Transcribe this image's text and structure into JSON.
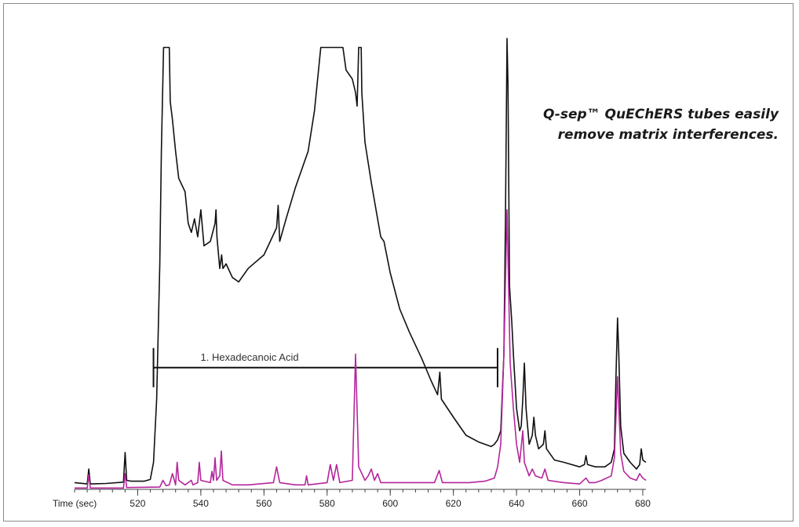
{
  "callout": {
    "line1": "Q-sep™ QuEChERS tubes easily",
    "line2": "remove matrix interferences."
  },
  "chart_data": {
    "type": "line",
    "title": "",
    "xlabel": "Time (sec)",
    "ylabel": "",
    "xlim": [
      500,
      681
    ],
    "ylim": [
      0,
      100
    ],
    "x_ticks": [
      520,
      540,
      560,
      580,
      600,
      620,
      640,
      660,
      680
    ],
    "grid": false,
    "colors": {
      "series_black": "#111111",
      "series_magenta": "#b5259c",
      "annotation": "#111111"
    },
    "annotation": {
      "label": "1. Hexadecanoic Acid",
      "x_start": 525,
      "x_end": 634,
      "y": 27
    },
    "series": [
      {
        "color": "#111111",
        "points": [
          [
            500,
            1.5
          ],
          [
            504,
            1.2
          ],
          [
            504.5,
            4.5
          ],
          [
            505,
            1.2
          ],
          [
            510,
            1.3
          ],
          [
            515.5,
            1.6
          ],
          [
            516,
            8.2
          ],
          [
            516.5,
            2.0
          ],
          [
            518,
            1.8
          ],
          [
            522,
            1.8
          ],
          [
            524,
            2.2
          ],
          [
            525,
            6
          ],
          [
            526,
            20
          ],
          [
            527,
            50
          ],
          [
            527.5,
            75
          ],
          [
            528.2,
            98
          ],
          [
            530,
            98
          ],
          [
            530.3,
            86
          ],
          [
            531,
            82
          ],
          [
            532,
            75
          ],
          [
            533,
            69
          ],
          [
            535,
            66
          ],
          [
            536,
            59
          ],
          [
            537,
            57
          ],
          [
            538,
            60
          ],
          [
            539,
            56
          ],
          [
            540,
            62
          ],
          [
            541,
            54
          ],
          [
            543,
            55
          ],
          [
            544.5,
            59
          ],
          [
            544.8,
            62
          ],
          [
            545.1,
            56
          ],
          [
            546,
            49
          ],
          [
            546.6,
            52
          ],
          [
            547,
            49
          ],
          [
            548,
            50
          ],
          [
            550,
            47
          ],
          [
            552,
            46
          ],
          [
            555,
            49
          ],
          [
            560,
            52
          ],
          [
            564,
            58
          ],
          [
            564.5,
            63
          ],
          [
            565,
            55
          ],
          [
            567,
            60
          ],
          [
            570,
            67
          ],
          [
            574,
            75
          ],
          [
            576,
            84
          ],
          [
            578,
            98
          ],
          [
            585,
            98
          ],
          [
            586,
            93
          ],
          [
            587,
            92
          ],
          [
            588,
            91
          ],
          [
            589,
            88
          ],
          [
            589.5,
            85
          ],
          [
            590,
            98
          ],
          [
            590.8,
            98
          ],
          [
            591,
            88
          ],
          [
            592,
            77
          ],
          [
            594,
            68
          ],
          [
            596,
            60
          ],
          [
            597,
            56
          ],
          [
            598,
            55
          ],
          [
            600,
            48
          ],
          [
            603,
            40
          ],
          [
            606,
            35
          ],
          [
            610,
            29
          ],
          [
            613,
            24
          ],
          [
            615,
            21
          ],
          [
            615.7,
            26
          ],
          [
            616.2,
            20
          ],
          [
            620,
            16
          ],
          [
            624,
            12
          ],
          [
            628,
            10.5
          ],
          [
            632,
            9.5
          ],
          [
            633,
            10
          ],
          [
            634,
            11
          ],
          [
            635,
            13
          ],
          [
            636,
            30
          ],
          [
            636.5,
            60
          ],
          [
            637,
            100
          ],
          [
            637.3,
            90
          ],
          [
            637.8,
            45
          ],
          [
            638.5,
            37
          ],
          [
            639,
            30
          ],
          [
            640,
            18
          ],
          [
            641,
            13
          ],
          [
            641.5,
            14
          ],
          [
            642,
            20
          ],
          [
            642.5,
            28
          ],
          [
            643,
            18
          ],
          [
            644,
            10
          ],
          [
            645,
            12
          ],
          [
            645.5,
            16
          ],
          [
            646,
            12
          ],
          [
            647,
            9
          ],
          [
            648.5,
            10
          ],
          [
            649,
            13
          ],
          [
            649.5,
            9
          ],
          [
            652,
            6.5
          ],
          [
            655,
            6
          ],
          [
            660,
            5
          ],
          [
            661.5,
            5.5
          ],
          [
            662,
            7.5
          ],
          [
            662.5,
            5.5
          ],
          [
            665,
            5
          ],
          [
            668,
            5
          ],
          [
            670,
            6
          ],
          [
            671,
            9
          ],
          [
            671.5,
            25
          ],
          [
            672,
            38
          ],
          [
            672.4,
            30
          ],
          [
            673,
            14
          ],
          [
            674,
            8
          ],
          [
            676,
            6
          ],
          [
            678,
            4.5
          ],
          [
            679,
            5.5
          ],
          [
            679.5,
            9
          ],
          [
            680,
            6.5
          ],
          [
            681,
            6
          ]
        ]
      },
      {
        "color": "#b5259c",
        "points": [
          [
            500,
            0.3
          ],
          [
            504,
            0.3
          ],
          [
            504.5,
            3.2
          ],
          [
            505,
            0.3
          ],
          [
            515.5,
            0.3
          ],
          [
            516,
            3.5
          ],
          [
            516.5,
            0.4
          ],
          [
            527,
            0.5
          ],
          [
            528,
            2
          ],
          [
            529,
            0.8
          ],
          [
            530,
            1
          ],
          [
            531,
            3.5
          ],
          [
            532,
            1
          ],
          [
            532.5,
            6
          ],
          [
            533,
            2
          ],
          [
            535,
            1
          ],
          [
            537,
            2
          ],
          [
            537.5,
            1
          ],
          [
            539,
            1.5
          ],
          [
            539.5,
            6
          ],
          [
            540,
            2
          ],
          [
            543,
            1.5
          ],
          [
            543.5,
            4
          ],
          [
            544,
            2
          ],
          [
            544.5,
            7
          ],
          [
            545,
            2
          ],
          [
            546,
            3
          ],
          [
            546.5,
            8.5
          ],
          [
            547,
            2
          ],
          [
            550,
            1
          ],
          [
            555,
            1
          ],
          [
            563,
            1.5
          ],
          [
            564,
            5
          ],
          [
            565,
            1.5
          ],
          [
            570,
            1
          ],
          [
            573,
            1
          ],
          [
            573.5,
            3
          ],
          [
            574,
            1
          ],
          [
            580,
            1.5
          ],
          [
            581,
            5.5
          ],
          [
            582,
            2
          ],
          [
            583,
            5.5
          ],
          [
            584,
            1.5
          ],
          [
            588,
            2
          ],
          [
            589,
            30
          ],
          [
            590,
            5
          ],
          [
            592,
            2
          ],
          [
            593,
            3
          ],
          [
            594,
            4.5
          ],
          [
            595,
            2
          ],
          [
            596,
            3.5
          ],
          [
            597,
            1.5
          ],
          [
            603,
            1.5
          ],
          [
            610,
            1.5
          ],
          [
            614,
            1.5
          ],
          [
            615.5,
            4.2
          ],
          [
            616.5,
            1.5
          ],
          [
            620,
            1.5
          ],
          [
            625,
            1.5
          ],
          [
            630,
            1.8
          ],
          [
            633,
            2.5
          ],
          [
            634,
            5
          ],
          [
            635,
            10
          ],
          [
            636,
            30
          ],
          [
            637,
            62
          ],
          [
            637.5,
            45
          ],
          [
            638,
            28
          ],
          [
            639,
            18
          ],
          [
            640,
            10
          ],
          [
            641,
            6
          ],
          [
            642,
            13
          ],
          [
            642.5,
            6
          ],
          [
            644,
            3
          ],
          [
            645,
            4.5
          ],
          [
            646,
            3
          ],
          [
            648,
            2.5
          ],
          [
            649,
            4.5
          ],
          [
            650,
            2
          ],
          [
            655,
            1.5
          ],
          [
            660,
            1.2
          ],
          [
            662,
            2.5
          ],
          [
            663,
            1.5
          ],
          [
            665,
            1.5
          ],
          [
            667,
            2
          ],
          [
            670,
            3
          ],
          [
            671,
            7
          ],
          [
            672,
            25
          ],
          [
            673,
            8
          ],
          [
            674,
            4
          ],
          [
            676,
            2.5
          ],
          [
            678,
            2
          ],
          [
            679,
            3.5
          ],
          [
            680,
            2.5
          ],
          [
            681,
            2
          ]
        ]
      }
    ]
  }
}
